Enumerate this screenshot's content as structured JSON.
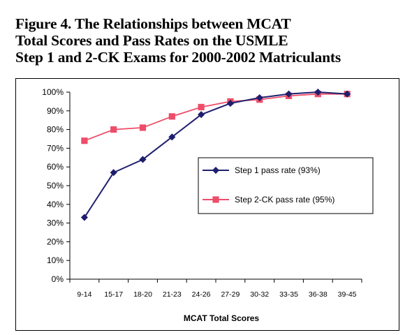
{
  "chart_data": {
    "type": "line",
    "title_lines": [
      "Figure 4. The Relationships between MCAT",
      "Total Scores and Pass Rates on the USMLE",
      "Step 1 and 2-CK Exams for 2000-2002 Matriculants"
    ],
    "xlabel": "MCAT Total Scores",
    "ylabel": "",
    "categories": [
      "9-14",
      "15-17",
      "18-20",
      "21-23",
      "24-26",
      "27-29",
      "30-32",
      "33-35",
      "36-38",
      "39-45"
    ],
    "yticks": [
      "0%",
      "10%",
      "20%",
      "30%",
      "40%",
      "50%",
      "60%",
      "70%",
      "80%",
      "90%",
      "100%"
    ],
    "ylim": [
      0,
      100
    ],
    "grid": false,
    "legend_position": "right-center",
    "series": [
      {
        "name": "Step 1 pass rate (93%)",
        "values": [
          33,
          57,
          64,
          76,
          88,
          94,
          97,
          99,
          100,
          99
        ],
        "color": "#1f1f6e",
        "marker": "diamond"
      },
      {
        "name": "Step 2-CK pass rate (95%)",
        "values": [
          74,
          80,
          81,
          87,
          92,
          95,
          96,
          98,
          99,
          99
        ],
        "color": "#ee4d6a",
        "marker": "square"
      }
    ]
  }
}
